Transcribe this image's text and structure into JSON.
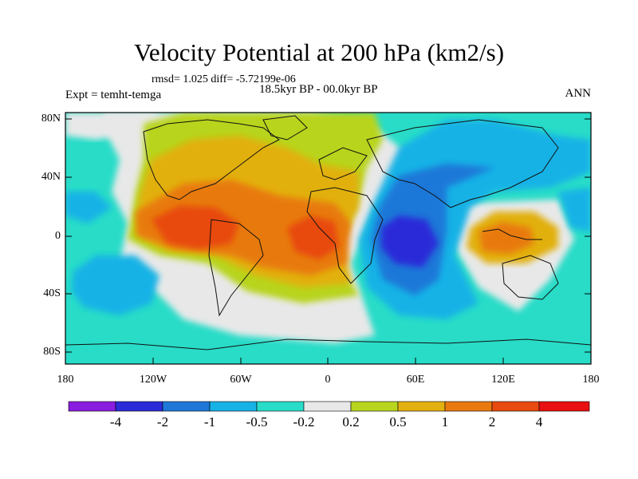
{
  "title": "Velocity Potential at 200 hPa (km2/s)",
  "stats": "rmsd= 1.025 diff= -5.72199e-06",
  "period": "18.5kyr BP - 00.0kyr BP",
  "experiment": "Expt = temht-temga",
  "season": "ANN",
  "lat_labels": [
    "80N",
    "40N",
    "0",
    "40S",
    "80S"
  ],
  "lon_labels": [
    "180",
    "120W",
    "60W",
    "0",
    "60E",
    "120E",
    "180"
  ],
  "colorbar": {
    "labels": [
      "-4",
      "-2",
      "-1",
      "-0.5",
      "-0.2",
      "0.2",
      "0.5",
      "1",
      "2",
      "4"
    ],
    "colors": [
      "#8a1ee0",
      "#2b2bd8",
      "#1f78d8",
      "#17b2e6",
      "#28dcc8",
      "#e8e8e8",
      "#b8d41e",
      "#e2b010",
      "#e87a10",
      "#e84a10",
      "#e81010"
    ]
  },
  "chart_data": {
    "type": "filled_contour_map",
    "title": "Velocity Potential at 200 hPa (km2/s)",
    "levels": [
      -4,
      -2,
      -1,
      -0.5,
      -0.2,
      0.2,
      0.5,
      1,
      2,
      4
    ],
    "xlim": [
      -180,
      180
    ],
    "ylim": [
      -90,
      90
    ],
    "features": [
      {
        "name": "atlantic-americas-high",
        "center": [
          -60,
          10
        ],
        "value_range": "2 to 4"
      },
      {
        "name": "indian-ocean-low",
        "center": [
          60,
          0
        ],
        "value_range": "-4 to -2"
      },
      {
        "name": "maritime-continent-high",
        "center": [
          125,
          0
        ],
        "value_range": "1 to 2"
      },
      {
        "name": "southeast-pacific-low",
        "center": [
          -150,
          -35
        ],
        "value_range": "-1 to -0.5"
      }
    ]
  }
}
